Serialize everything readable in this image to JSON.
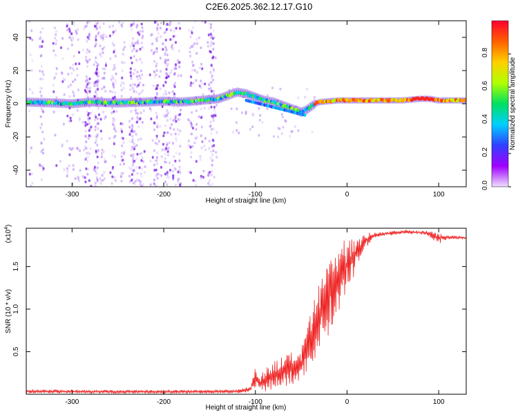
{
  "title": "C2E6.2025.362.12.17.G10",
  "colors": {
    "snr_line": "#ee2222",
    "spectrogram_dots": "#8a3cf0",
    "colorbar_stops": [
      "#f0e0ff",
      "#a000ff",
      "#3040ff",
      "#00d0ff",
      "#00e060",
      "#b0ff00",
      "#ffd000",
      "#ff6000",
      "#ff0030"
    ]
  },
  "chart_data": [
    {
      "type": "heatmap",
      "name": "spectrogram",
      "xlabel": "Height of straight line (km)",
      "ylabel": "Frequency (Hz)",
      "xlim": [
        -350,
        130
      ],
      "ylim": [
        -50,
        50
      ],
      "xticks": [
        -300,
        -200,
        -100,
        0,
        100
      ],
      "yticks": [
        -40,
        -20,
        0,
        20,
        40
      ],
      "ridge": {
        "x": [
          -350,
          -320,
          -300,
          -280,
          -250,
          -220,
          -200,
          -180,
          -160,
          -140,
          -130,
          -120,
          -110,
          -100,
          -90,
          -80,
          -70,
          -60,
          -50,
          -45,
          -40,
          -35,
          -30,
          -20,
          -10,
          0,
          20,
          40,
          60,
          80,
          90,
          100,
          130
        ],
        "y": [
          1,
          0.5,
          0,
          1,
          0.5,
          1,
          1.5,
          1,
          2,
          3,
          5,
          7,
          6,
          4,
          2,
          1,
          -1,
          -3,
          -5,
          -4,
          -2,
          0,
          1,
          1.5,
          2,
          2,
          2,
          2,
          2,
          3,
          3,
          2,
          2
        ]
      },
      "colorbar": {
        "label": "Normalized spectral amplitude",
        "range": [
          0,
          1
        ],
        "ticks": [
          "0.0",
          "0.2",
          "0.4",
          "0.6",
          "0.8"
        ]
      }
    },
    {
      "type": "line",
      "name": "snr",
      "xlabel": "Height of straight line (km)",
      "ylabel": "SNR (10 * v/v)",
      "multiplier": "(x10",
      "multiplier_exp": "4",
      "multiplier_close": ")",
      "xlim": [
        -350,
        130
      ],
      "ylim": [
        0,
        1.95
      ],
      "xticks": [
        -300,
        -200,
        -100,
        0,
        100
      ],
      "yticks": [
        "0.5",
        "1.0",
        "1.5"
      ],
      "envelope": {
        "x": [
          -350,
          -250,
          -150,
          -120,
          -105,
          -100,
          -95,
          -80,
          -70,
          -60,
          -50,
          -45,
          -40,
          -35,
          -30,
          -25,
          -20,
          -15,
          -10,
          -5,
          0,
          5,
          10,
          15,
          20,
          25,
          30,
          40,
          50,
          60,
          70,
          80,
          90,
          95,
          100,
          105,
          110,
          120,
          130
        ],
        "lo": [
          0.01,
          0.01,
          0.01,
          0.01,
          0.02,
          0.03,
          0.02,
          0.05,
          0.08,
          0.1,
          0.15,
          0.25,
          0.3,
          0.4,
          0.5,
          0.6,
          0.7,
          0.8,
          0.9,
          1.05,
          1.2,
          1.3,
          1.45,
          1.6,
          1.7,
          1.78,
          1.83,
          1.86,
          1.87,
          1.88,
          1.88,
          1.88,
          1.85,
          1.8,
          1.76,
          1.8,
          1.82,
          1.82,
          1.82
        ],
        "hi": [
          0.06,
          0.05,
          0.05,
          0.06,
          0.1,
          0.35,
          0.25,
          0.4,
          0.45,
          0.5,
          0.55,
          0.7,
          0.95,
          1.15,
          1.3,
          1.55,
          1.65,
          1.7,
          1.75,
          1.8,
          1.85,
          1.9,
          1.88,
          1.88,
          1.9,
          1.9,
          1.9,
          1.91,
          1.92,
          1.93,
          1.93,
          1.92,
          1.92,
          1.9,
          1.92,
          1.88,
          1.87,
          1.86,
          1.86
        ]
      }
    }
  ]
}
